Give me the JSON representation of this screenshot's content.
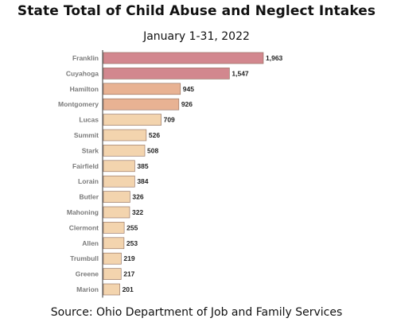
{
  "title": "State Total of Child Abuse and Neglect Intakes",
  "subtitle": "January 1-31, 2022",
  "source": "Source: Ohio Department of Job and Family Services",
  "colors": {
    "bar_top": "#d2878e",
    "bar_mid": "#e8b293",
    "bar_low": "#f3d4ae",
    "bar_stroke": "#8c6a5a",
    "axis": "#333333"
  },
  "chart_data": {
    "type": "bar",
    "orientation": "horizontal",
    "categories": [
      "Franklin",
      "Cuyahoga",
      "Hamilton",
      "Montgomery",
      "Lucas",
      "Summit",
      "Stark",
      "Fairfield",
      "Lorain",
      "Butler",
      "Mahoning",
      "Clermont",
      "Allen",
      "Trumbull",
      "Greene",
      "Marion"
    ],
    "value_labels": [
      "1,963",
      "1,547",
      "945",
      "926",
      "709",
      "526",
      "508",
      "385",
      "384",
      "326",
      "322",
      "255",
      "253",
      "219",
      "217",
      "201"
    ],
    "values": [
      1963,
      1547,
      945,
      926,
      709,
      526,
      508,
      385,
      384,
      326,
      322,
      255,
      253,
      219,
      217,
      201
    ],
    "title": "State Total of Child Abuse and Neglect Intakes",
    "subtitle": "January 1-31, 2022",
    "xlabel": "",
    "ylabel": "",
    "grid": false,
    "legend": "none"
  }
}
